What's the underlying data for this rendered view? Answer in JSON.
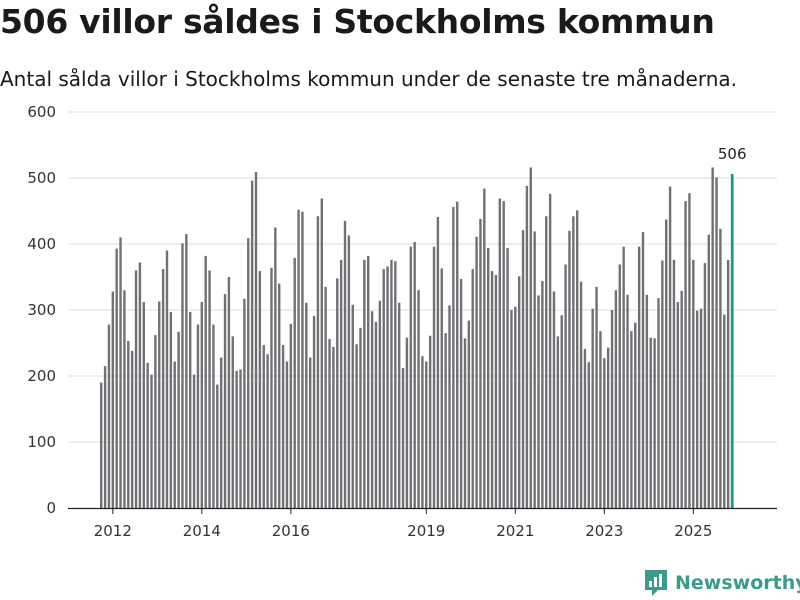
{
  "title": "506 villor såldes i Stockholms kommun",
  "subtitle": "Antal sålda villor i Stockholms kommun under de senaste tre månaderna.",
  "brand": {
    "name": "Newsworthy",
    "icon": "newsworthy-logo-icon"
  },
  "colors": {
    "bar": "#707075",
    "highlight": "#1a9a8c",
    "grid": "#dddddd",
    "brand": "#3a9b8b"
  },
  "chart_data": {
    "type": "bar",
    "title": "506 villor såldes i Stockholms kommun",
    "xlabel": "",
    "ylabel": "",
    "ylim": [
      0,
      600
    ],
    "yticks": [
      0,
      100,
      200,
      300,
      400,
      500,
      600
    ],
    "x_tick_labels": [
      "2012",
      "2014",
      "2016",
      "2019",
      "2021",
      "2023",
      "2025"
    ],
    "x_tick_index": [
      3,
      26,
      49,
      84,
      107,
      130,
      153
    ],
    "highlight_label": "506",
    "categories_note": "rolling three-month totals, monthly from 2012 to 2025",
    "values": [
      190,
      215,
      278,
      328,
      393,
      410,
      330,
      253,
      238,
      360,
      372,
      312,
      220,
      202,
      262,
      313,
      362,
      390,
      297,
      222,
      267,
      401,
      415,
      297,
      202,
      278,
      312,
      382,
      360,
      278,
      187,
      228,
      324,
      350,
      260,
      208,
      210,
      317,
      409,
      496,
      509,
      359,
      247,
      233,
      364,
      425,
      340,
      247,
      222,
      279,
      379,
      452,
      449,
      311,
      228,
      291,
      442,
      469,
      335,
      256,
      244,
      348,
      376,
      435,
      413,
      308,
      248,
      273,
      376,
      382,
      298,
      282,
      314,
      362,
      366,
      376,
      374,
      311,
      212,
      258,
      396,
      403,
      330,
      230,
      222,
      261,
      396,
      441,
      363,
      265,
      307,
      456,
      464,
      347,
      257,
      284,
      362,
      411,
      438,
      484,
      394,
      359,
      353,
      469,
      465,
      394,
      300,
      305,
      351,
      421,
      488,
      516,
      419,
      322,
      344,
      442,
      476,
      328,
      260,
      292,
      369,
      420,
      442,
      451,
      343,
      241,
      221,
      302,
      335,
      268,
      227,
      243,
      300,
      330,
      369,
      396,
      323,
      268,
      281,
      396,
      418,
      323,
      258,
      257,
      318,
      375,
      437,
      487,
      376,
      312,
      329,
      465,
      477,
      376,
      299,
      302,
      371,
      414,
      516,
      501,
      423,
      293,
      376,
      506
    ],
    "series": [
      {
        "name": "Sålda villor"
      }
    ]
  }
}
